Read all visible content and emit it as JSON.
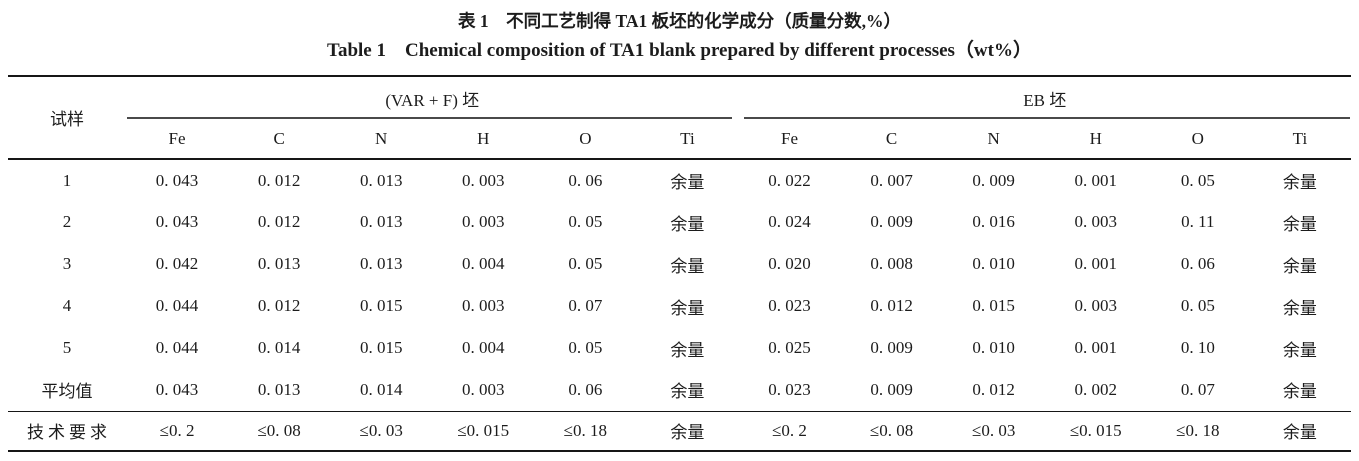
{
  "page": {
    "background": "#ffffff",
    "text_color": "#1c1c1c",
    "rule_color": "#161616"
  },
  "titles": {
    "zh": "表 1　不同工艺制得 TA1 板坯的化学成分（质量分数,%）",
    "en": "Table 1　Chemical composition of TA1 blank prepared by different processes（wt%）"
  },
  "table": {
    "sample_header": "试样",
    "groups": [
      {
        "label": "(VAR + F) 坯",
        "columns": [
          "Fe",
          "C",
          "N",
          "H",
          "O",
          "Ti"
        ]
      },
      {
        "label": "EB 坯",
        "columns": [
          "Fe",
          "C",
          "N",
          "H",
          "O",
          "Ti"
        ]
      }
    ],
    "data_rows": [
      {
        "label": "1",
        "var_f": [
          "0. 043",
          "0. 012",
          "0. 013",
          "0. 003",
          "0. 06",
          "余量"
        ],
        "eb": [
          "0. 022",
          "0. 007",
          "0. 009",
          "0. 001",
          "0. 05",
          "余量"
        ]
      },
      {
        "label": "2",
        "var_f": [
          "0. 043",
          "0. 012",
          "0. 013",
          "0. 003",
          "0. 05",
          "余量"
        ],
        "eb": [
          "0. 024",
          "0. 009",
          "0. 016",
          "0. 003",
          "0. 11",
          "余量"
        ]
      },
      {
        "label": "3",
        "var_f": [
          "0. 042",
          "0. 013",
          "0. 013",
          "0. 004",
          "0. 05",
          "余量"
        ],
        "eb": [
          "0. 020",
          "0. 008",
          "0. 010",
          "0. 001",
          "0. 06",
          "余量"
        ]
      },
      {
        "label": "4",
        "var_f": [
          "0. 044",
          "0. 012",
          "0. 015",
          "0. 003",
          "0. 07",
          "余量"
        ],
        "eb": [
          "0. 023",
          "0. 012",
          "0. 015",
          "0. 003",
          "0. 05",
          "余量"
        ]
      },
      {
        "label": "5",
        "var_f": [
          "0. 044",
          "0. 014",
          "0. 015",
          "0. 004",
          "0. 05",
          "余量"
        ],
        "eb": [
          "0. 025",
          "0. 009",
          "0. 010",
          "0. 001",
          "0. 10",
          "余量"
        ]
      },
      {
        "label": "平均值",
        "var_f": [
          "0. 043",
          "0. 013",
          "0. 014",
          "0. 003",
          "0. 06",
          "余量"
        ],
        "eb": [
          "0. 023",
          "0. 009",
          "0. 012",
          "0. 002",
          "0. 07",
          "余量"
        ]
      }
    ],
    "spec_row": {
      "label": "技术要求",
      "var_f": [
        "≤0. 2",
        "≤0. 08",
        "≤0. 03",
        "≤0. 015",
        "≤0. 18",
        "余量"
      ],
      "eb": [
        "≤0. 2",
        "≤0. 08",
        "≤0. 03",
        "≤0. 015",
        "≤0. 18",
        "余量"
      ]
    }
  }
}
